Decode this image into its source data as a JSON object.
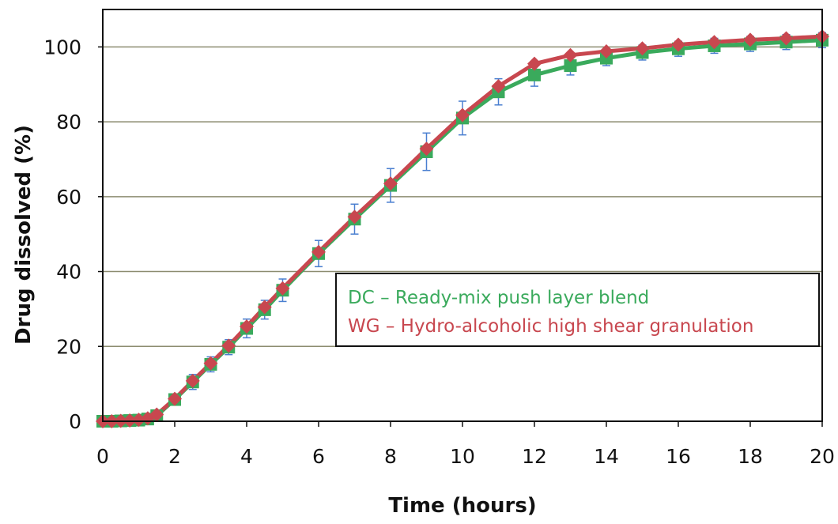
{
  "chart_data": {
    "type": "line",
    "xlabel": "Time (hours)",
    "ylabel": "Drug dissolved (%)",
    "xlim": [
      0,
      20
    ],
    "ylim": [
      0,
      110
    ],
    "xticks": [
      0,
      2,
      4,
      6,
      8,
      10,
      12,
      14,
      16,
      18,
      20
    ],
    "yticks": [
      0,
      20,
      40,
      60,
      80,
      100
    ],
    "grid": "horizontal",
    "legend_placement": "lower-right",
    "x": [
      0,
      0.25,
      0.5,
      0.75,
      1,
      1.25,
      1.5,
      2,
      2.5,
      3,
      3.5,
      4,
      4.5,
      5,
      6,
      7,
      8,
      9,
      10,
      11,
      12,
      13,
      14,
      15,
      16,
      17,
      18,
      19,
      20
    ],
    "series": [
      {
        "name": "DC – Ready-mix push layer blend",
        "color": "#3aaa5c",
        "marker": "square",
        "values": [
          0,
          0,
          0.1,
          0.2,
          0.3,
          0.6,
          1.5,
          5.8,
          10.5,
          15.2,
          19.8,
          24.8,
          29.8,
          35.0,
          44.8,
          54.0,
          63.0,
          72.0,
          81.0,
          88.0,
          92.5,
          95.0,
          97.0,
          98.5,
          99.5,
          100.3,
          100.8,
          101.3,
          101.8
        ],
        "error": [
          0.3,
          0.3,
          0.3,
          0.3,
          0.3,
          0.4,
          0.6,
          1.5,
          2.0,
          2.0,
          2.0,
          2.5,
          2.5,
          3.0,
          3.5,
          4.0,
          4.5,
          5.0,
          4.5,
          3.5,
          3.0,
          2.5,
          2.0,
          2.0,
          2.0,
          2.0,
          2.0,
          2.0,
          2.0
        ]
      },
      {
        "name": "WG – Hydro-alcoholic high shear granulation",
        "color": "#c8474f",
        "marker": "diamond",
        "values": [
          0,
          0,
          0.1,
          0.2,
          0.4,
          0.8,
          1.8,
          6.0,
          10.8,
          15.5,
          20.2,
          25.3,
          30.5,
          35.5,
          45.2,
          54.6,
          63.5,
          72.8,
          81.8,
          89.5,
          95.5,
          97.8,
          98.8,
          99.6,
          100.6,
          101.3,
          101.9,
          102.3,
          102.8
        ],
        "error": [
          0,
          0,
          0,
          0,
          0,
          0,
          0,
          0,
          0,
          0,
          0,
          0,
          0,
          0,
          0,
          0,
          0,
          0,
          0,
          0,
          0,
          0,
          0,
          0,
          0,
          0,
          0,
          0,
          0
        ]
      }
    ]
  },
  "colors": {
    "grid": "#8c8c70",
    "error_bar": "#4a7fd0",
    "plot_border": "#111111",
    "legend_border": "#111111"
  }
}
